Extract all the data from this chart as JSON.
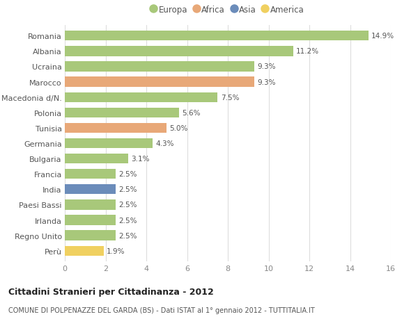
{
  "countries": [
    "Romania",
    "Albania",
    "Ucraina",
    "Marocco",
    "Macedonia d/N.",
    "Polonia",
    "Tunisia",
    "Germania",
    "Bulgaria",
    "Francia",
    "India",
    "Paesi Bassi",
    "Irlanda",
    "Regno Unito",
    "Perù"
  ],
  "values": [
    14.9,
    11.2,
    9.3,
    9.3,
    7.5,
    5.6,
    5.0,
    4.3,
    3.1,
    2.5,
    2.5,
    2.5,
    2.5,
    2.5,
    1.9
  ],
  "continents": [
    "Europa",
    "Europa",
    "Europa",
    "Africa",
    "Europa",
    "Europa",
    "Africa",
    "Europa",
    "Europa",
    "Europa",
    "Asia",
    "Europa",
    "Europa",
    "Europa",
    "America"
  ],
  "colors": {
    "Europa": "#a8c87a",
    "Africa": "#e8a878",
    "Asia": "#6b8cba",
    "America": "#f0d060"
  },
  "legend_order": [
    "Europa",
    "Africa",
    "Asia",
    "America"
  ],
  "title1": "Cittadini Stranieri per Cittadinanza - 2012",
  "title2": "COMUNE DI POLPENAZZE DEL GARDA (BS) - Dati ISTAT al 1° gennaio 2012 - TUTTITALIA.IT",
  "xlim": [
    0,
    16
  ],
  "xticks": [
    0,
    2,
    4,
    6,
    8,
    10,
    12,
    14,
    16
  ],
  "background_color": "#ffffff",
  "bar_height": 0.65
}
